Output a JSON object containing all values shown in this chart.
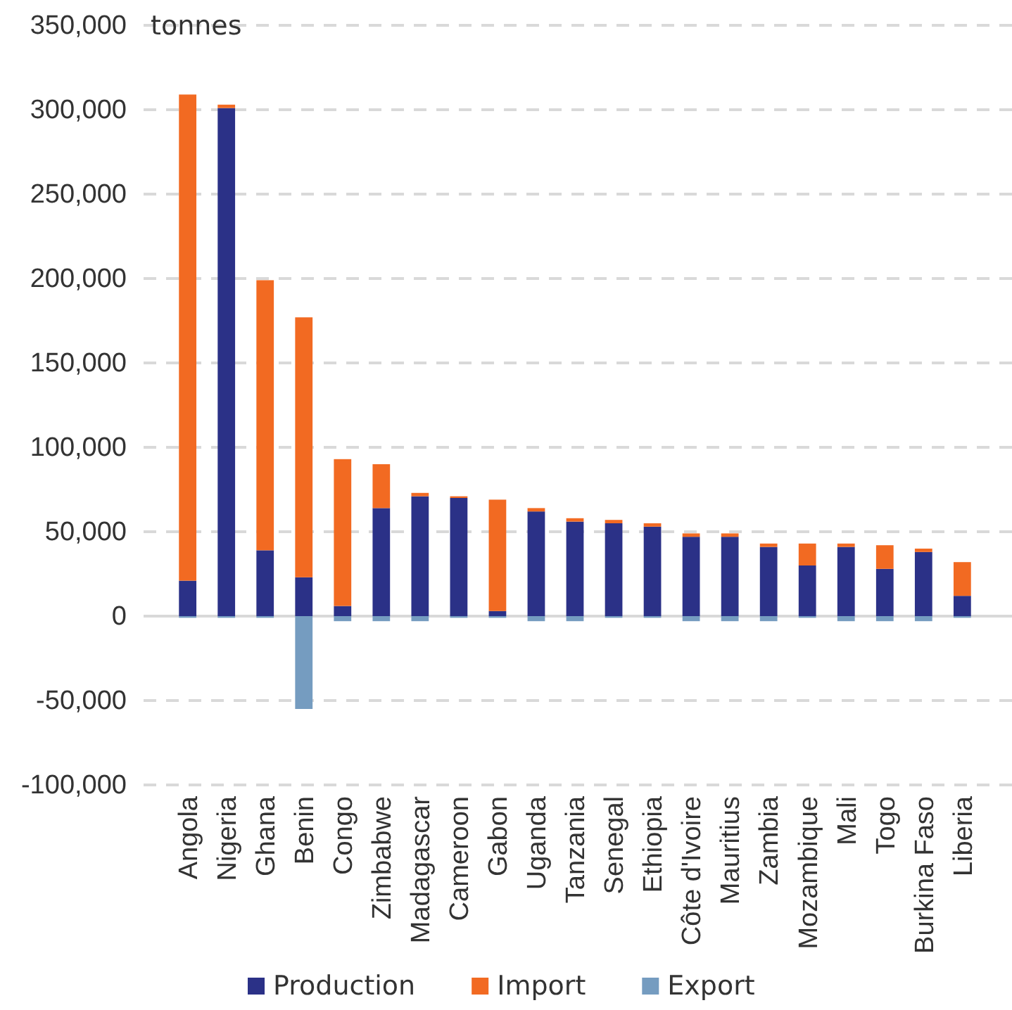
{
  "chart_data": {
    "type": "bar",
    "stacked": true,
    "ylabel": "tonnes",
    "categories": [
      "Angola",
      "Nigeria",
      "Ghana",
      "Benin",
      "Congo",
      "Zimbabwe",
      "Madagascar",
      "Cameroon",
      "Gabon",
      "Uganda",
      "Tanzania",
      "Senegal",
      "Ethiopia",
      "Côte d'Ivoire",
      "Mauritius",
      "Zambia",
      "Mozambique",
      "Mali",
      "Togo",
      "Burkina Faso",
      "Liberia"
    ],
    "series": [
      {
        "name": "Production",
        "color": "#2b3187",
        "values": [
          21000,
          301000,
          39000,
          23000,
          6000,
          64000,
          71000,
          70000,
          3000,
          62000,
          56000,
          55000,
          53000,
          47000,
          47000,
          41000,
          30000,
          41000,
          28000,
          38000,
          12000
        ]
      },
      {
        "name": "Import",
        "color": "#f26a22",
        "values": [
          288000,
          2000,
          160000,
          154000,
          87000,
          26000,
          2000,
          1000,
          66000,
          2000,
          2000,
          2000,
          2000,
          2000,
          2000,
          2000,
          13000,
          2000,
          14000,
          2000,
          20000
        ]
      },
      {
        "name": "Export",
        "color": "#759cc0",
        "values": [
          -1000,
          -1000,
          -1000,
          -55000,
          -3000,
          -3000,
          -3000,
          -1000,
          -1000,
          -3000,
          -3000,
          -1000,
          -1000,
          -3000,
          -3000,
          -3000,
          -1000,
          -3000,
          -3000,
          -3000,
          -1000
        ]
      }
    ],
    "ylim": [
      -100000,
      350000
    ],
    "yticks": [
      {
        "value": -100000,
        "label": "-100,000"
      },
      {
        "value": -50000,
        "label": "-50,000"
      },
      0,
      {
        "value": 50000,
        "label": "50,000"
      },
      {
        "value": 100000,
        "label": "100,000"
      },
      {
        "value": 150000,
        "label": "150,000"
      },
      {
        "value": 200000,
        "label": "200,000"
      },
      {
        "value": 250000,
        "label": "250,000"
      },
      {
        "value": 300000,
        "label": "300,000"
      },
      {
        "value": 350000,
        "label": "350,000"
      }
    ],
    "grid": "y",
    "legend": "bottom"
  }
}
